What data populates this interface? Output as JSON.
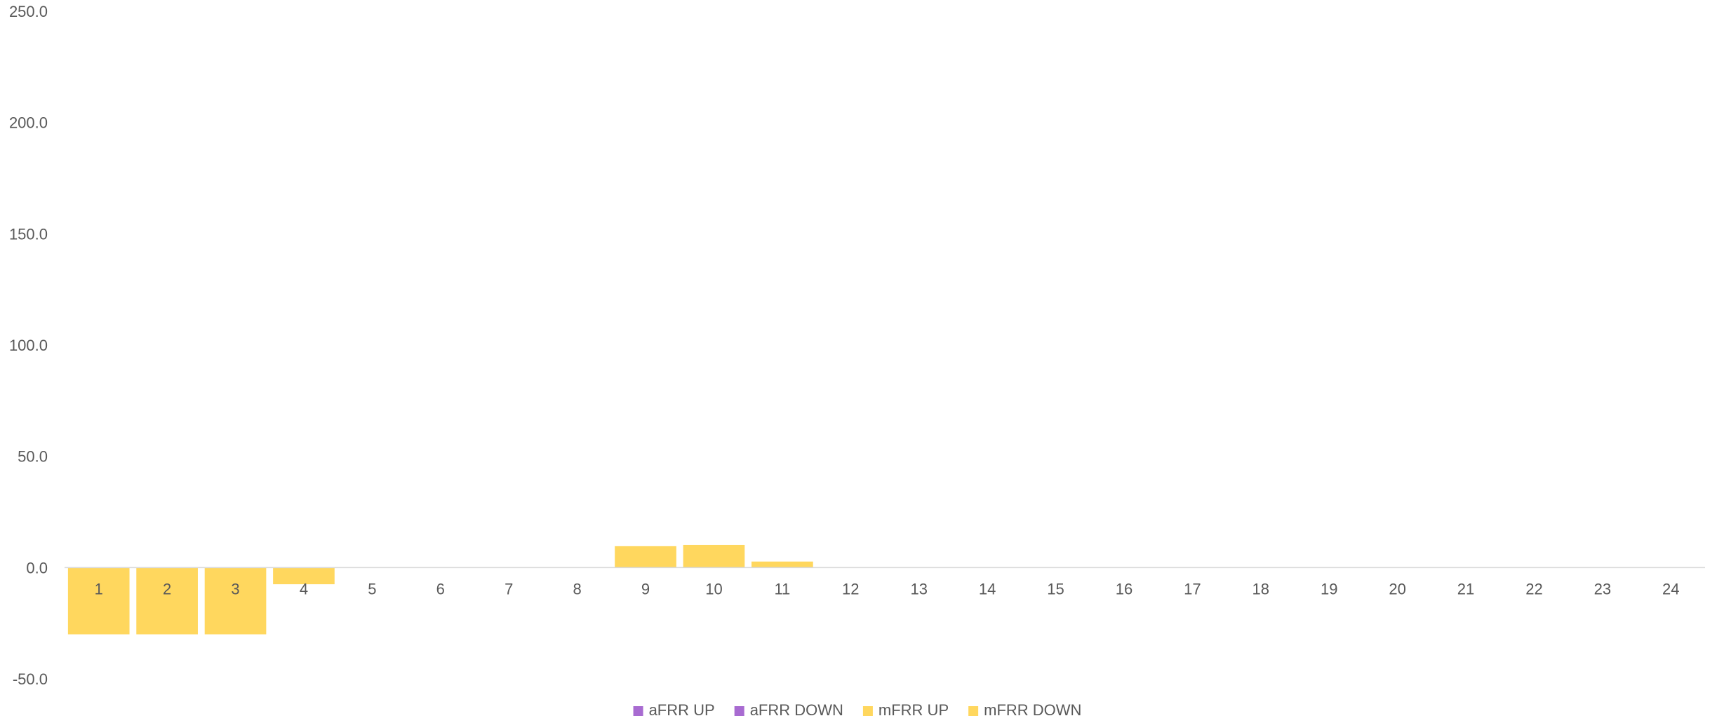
{
  "chart_data": {
    "type": "bar",
    "title": "",
    "xlabel": "",
    "ylabel": "",
    "categories": [
      "1",
      "2",
      "3",
      "4",
      "5",
      "6",
      "7",
      "8",
      "9",
      "10",
      "11",
      "12",
      "13",
      "14",
      "15",
      "16",
      "17",
      "18",
      "19",
      "20",
      "21",
      "22",
      "23",
      "24"
    ],
    "ylim": [
      -50,
      250
    ],
    "yticks": [
      "250.0",
      "200.0",
      "150.0",
      "100.0",
      "50.0",
      "0.0",
      "-50.0"
    ],
    "grid": false,
    "legend_position": "bottom",
    "series": [
      {
        "name": "aFRR UP",
        "color": "#A86BD1",
        "values": [
          0,
          0,
          0,
          0,
          0,
          0,
          0,
          0,
          0,
          0,
          0,
          0,
          0,
          0,
          0,
          0,
          0,
          0,
          0,
          0,
          0,
          0,
          0,
          0
        ]
      },
      {
        "name": "aFRR DOWN",
        "color": "#A86BD1",
        "values": [
          0,
          0,
          0,
          0,
          0,
          0,
          0,
          0,
          0,
          0,
          0,
          0,
          0,
          0,
          0,
          0,
          0,
          0,
          0,
          0,
          0,
          0,
          0,
          0
        ]
      },
      {
        "name": "mFRR UP",
        "color": "#FFD75E",
        "values": [
          0,
          0,
          0,
          0,
          0,
          0,
          0,
          0,
          9.6,
          10.2,
          2.7,
          0,
          0,
          0,
          0,
          0,
          0,
          0,
          0,
          0,
          0,
          0,
          0,
          0
        ]
      },
      {
        "name": "mFRR DOWN",
        "color": "#FFD75E",
        "values": [
          -30,
          -30,
          -30,
          -7.5,
          0,
          0,
          0,
          0,
          0,
          0,
          0,
          0,
          0,
          0,
          0,
          0,
          0,
          0,
          0,
          0,
          0,
          0,
          0,
          0
        ]
      }
    ]
  }
}
